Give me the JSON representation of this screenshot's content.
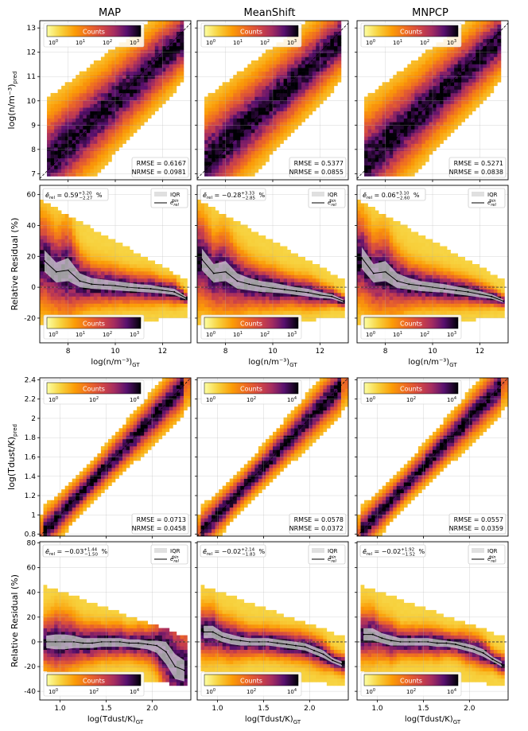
{
  "colorbar_label": "Counts",
  "legend": {
    "iqr": "IQR",
    "median": "ē",
    "median_sub": "rel",
    "median_sup": "bin"
  },
  "columns": [
    "MAP",
    "MeanShift",
    "MNPCP"
  ],
  "metric_labels": {
    "rmse": "RMSE",
    "nrmse": "NRMSE"
  },
  "row_labels": {
    "density_pred": "log(n/m⁻³)pred",
    "residual": "Relative Residual (%)",
    "temp_pred": "log(Tdust/K)pred"
  },
  "chart_data": [
    {
      "id": "density",
      "type": "heatmap",
      "xlabel": "log(n/m⁻³)GT",
      "xlim": [
        6.8,
        13.2
      ],
      "ylim_scatter": [
        6.75,
        13.3
      ],
      "ylim_residual": [
        -36,
        66
      ],
      "xticks": [
        8,
        10,
        12
      ],
      "yticks_scatter": [
        7,
        8,
        9,
        10,
        11,
        12,
        13
      ],
      "yticks_residual": [
        -20,
        0,
        20,
        40,
        60
      ],
      "colorbar_ticks": [
        "10^0",
        "10^1",
        "10^2",
        "10^3"
      ],
      "binned_x": [
        7.0,
        7.5,
        8.0,
        8.5,
        9.0,
        9.5,
        10.0,
        10.5,
        11.0,
        11.5,
        12.0,
        12.5,
        13.0
      ],
      "panels": [
        {
          "model": "MAP",
          "rmse": "0.6167",
          "nrmse": "0.0981",
          "residual_stats": {
            "median": "0.59",
            "plus": "+3.20",
            "minus": "−2.27"
          },
          "binned_median": [
            17,
            10,
            11,
            4,
            2,
            1.5,
            1,
            0,
            -0.5,
            -1,
            -2,
            -3,
            -7
          ],
          "binned_iqr_low": [
            10,
            3,
            4,
            0,
            -1,
            -1.5,
            -2,
            -2.5,
            -3,
            -3.5,
            -4,
            -5,
            -8
          ],
          "binned_iqr_high": [
            24,
            16,
            19,
            9,
            6,
            5,
            4,
            3,
            2,
            1.5,
            0,
            -1,
            -6
          ]
        },
        {
          "model": "MeanShift",
          "rmse": "0.5377",
          "nrmse": "0.0855",
          "residual_stats": {
            "median": "−0.28",
            "plus": "+3.33",
            "minus": "−2.85"
          },
          "binned_median": [
            18,
            9,
            10,
            4,
            2,
            0.5,
            -0.5,
            -1.5,
            -2.5,
            -3.5,
            -5,
            -6,
            -9
          ],
          "binned_iqr_low": [
            11,
            3,
            4,
            -1,
            -2,
            -3,
            -3.5,
            -4,
            -5,
            -6,
            -7,
            -7.5,
            -10
          ],
          "binned_iqr_high": [
            25,
            15,
            17,
            9,
            6,
            4,
            3,
            1.5,
            0,
            -1,
            -3,
            -4.5,
            -8
          ]
        },
        {
          "model": "MNPCP",
          "rmse": "0.5271",
          "nrmse": "0.0838",
          "residual_stats": {
            "median": "0.06",
            "plus": "+3.10",
            "minus": "−2.60"
          },
          "binned_median": [
            19,
            9,
            10,
            4,
            2,
            1,
            0,
            -1,
            -2,
            -3,
            -4.5,
            -6,
            -9
          ],
          "binned_iqr_low": [
            12,
            3,
            4,
            -0.5,
            -1.5,
            -2.5,
            -3,
            -3.5,
            -4.5,
            -5.5,
            -6.5,
            -7.5,
            -10
          ],
          "binned_iqr_high": [
            26,
            15,
            17,
            9,
            6,
            4,
            3,
            2,
            0.5,
            -1,
            -2.5,
            -4.5,
            -8
          ]
        }
      ]
    },
    {
      "id": "temperature",
      "type": "heatmap",
      "xlabel": "log(Tdust/K)GT",
      "xlim": [
        0.78,
        2.42
      ],
      "ylim_scatter": [
        0.78,
        2.42
      ],
      "ylim_residual": [
        -47,
        81
      ],
      "xticks": [
        1.0,
        1.5,
        2.0
      ],
      "xtick_labels": [
        "1.0",
        "1.5",
        "2.0"
      ],
      "yticks_scatter": [
        0.8,
        1.0,
        1.2,
        1.4,
        1.6,
        1.8,
        2.0,
        2.2,
        2.4
      ],
      "yticks_residual": [
        -40,
        -20,
        0,
        20,
        40,
        60,
        80
      ],
      "colorbar_ticks": [
        "10^0",
        "10^2",
        "10^4"
      ],
      "binned_x": [
        0.85,
        0.95,
        1.05,
        1.15,
        1.25,
        1.35,
        1.45,
        1.55,
        1.65,
        1.75,
        1.85,
        1.95,
        2.05,
        2.15,
        2.25,
        2.35
      ],
      "panels": [
        {
          "model": "MAP",
          "rmse": "0.0713",
          "nrmse": "0.0458",
          "residual_stats": {
            "median": "−0.03",
            "plus": "+1.44",
            "minus": "−1.50"
          },
          "binned_median": [
            0,
            0,
            0,
            0,
            -1,
            -1,
            0,
            0,
            0,
            -1,
            -1,
            -2,
            -3,
            -8,
            -20,
            -23
          ],
          "binned_iqr_low": [
            -5,
            -6,
            -6,
            -5,
            -5,
            -5,
            -4,
            -4,
            -4,
            -4,
            -5,
            -6,
            -9,
            -18,
            -30,
            -32
          ],
          "binned_iqr_high": [
            5,
            6,
            6,
            5,
            3,
            3,
            3,
            3,
            3,
            2,
            2,
            1,
            1,
            0,
            -10,
            -15
          ]
        },
        {
          "model": "MeanShift",
          "rmse": "0.0578",
          "nrmse": "0.0372",
          "residual_stats": {
            "median": "−0.02",
            "plus": "+2.14",
            "minus": "−1.83"
          },
          "binned_median": [
            8,
            8,
            4,
            2,
            1,
            0,
            0,
            0,
            -1,
            -2,
            -3,
            -4,
            -7,
            -10,
            -15,
            -18
          ],
          "binned_iqr_low": [
            3,
            3,
            0,
            -2,
            -3,
            -3,
            -3,
            -3,
            -4,
            -5,
            -6,
            -7,
            -10,
            -13,
            -17,
            -20
          ],
          "binned_iqr_high": [
            13,
            13,
            8,
            6,
            4,
            3,
            3,
            3,
            2,
            1,
            0,
            -1,
            -4,
            -7,
            -13,
            -16
          ]
        },
        {
          "model": "MNPCP",
          "rmse": "0.0557",
          "nrmse": "0.0359",
          "residual_stats": {
            "median": "−0.02",
            "plus": "+1.92",
            "minus": "−1.52"
          },
          "binned_median": [
            6,
            6,
            3,
            1,
            0,
            0,
            0,
            0,
            -1,
            -1,
            -2,
            -4,
            -6,
            -9,
            -14,
            -18
          ],
          "binned_iqr_low": [
            1,
            1,
            -1,
            -3,
            -3,
            -3,
            -3,
            -3,
            -4,
            -4,
            -5,
            -7,
            -9,
            -12,
            -16,
            -20
          ],
          "binned_iqr_high": [
            11,
            11,
            7,
            5,
            3,
            3,
            3,
            3,
            2,
            1,
            0,
            -1,
            -3,
            -6,
            -12,
            -16
          ]
        }
      ]
    }
  ]
}
